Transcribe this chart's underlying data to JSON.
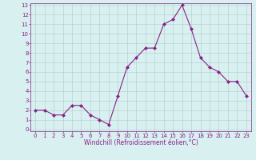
{
  "x": [
    0,
    1,
    2,
    3,
    4,
    5,
    6,
    7,
    8,
    9,
    10,
    11,
    12,
    13,
    14,
    15,
    16,
    17,
    18,
    19,
    20,
    21,
    22,
    23
  ],
  "y": [
    2,
    2,
    1.5,
    1.5,
    2.5,
    2.5,
    1.5,
    1,
    0.5,
    3.5,
    6.5,
    7.5,
    8.5,
    8.5,
    11,
    11.5,
    13,
    10.5,
    7.5,
    6.5,
    6,
    5,
    5,
    3.5
  ],
  "line_color": "#882288",
  "marker": "D",
  "marker_size": 2,
  "bg_color": "#d8f0f0",
  "grid_color": "#b0cccc",
  "xlabel": "Windchill (Refroidissement éolien,°C)",
  "xlabel_color": "#882288",
  "tick_color": "#882288",
  "ylim": [
    -0.2,
    13.2
  ],
  "xlim": [
    -0.5,
    23.5
  ],
  "yticks": [
    0,
    1,
    2,
    3,
    4,
    5,
    6,
    7,
    8,
    9,
    10,
    11,
    12,
    13
  ],
  "xticks": [
    0,
    1,
    2,
    3,
    4,
    5,
    6,
    7,
    8,
    9,
    10,
    11,
    12,
    13,
    14,
    15,
    16,
    17,
    18,
    19,
    20,
    21,
    22,
    23
  ],
  "spine_color": "#882288",
  "tick_fontsize": 5,
  "xlabel_fontsize": 5.5,
  "linewidth": 0.8
}
